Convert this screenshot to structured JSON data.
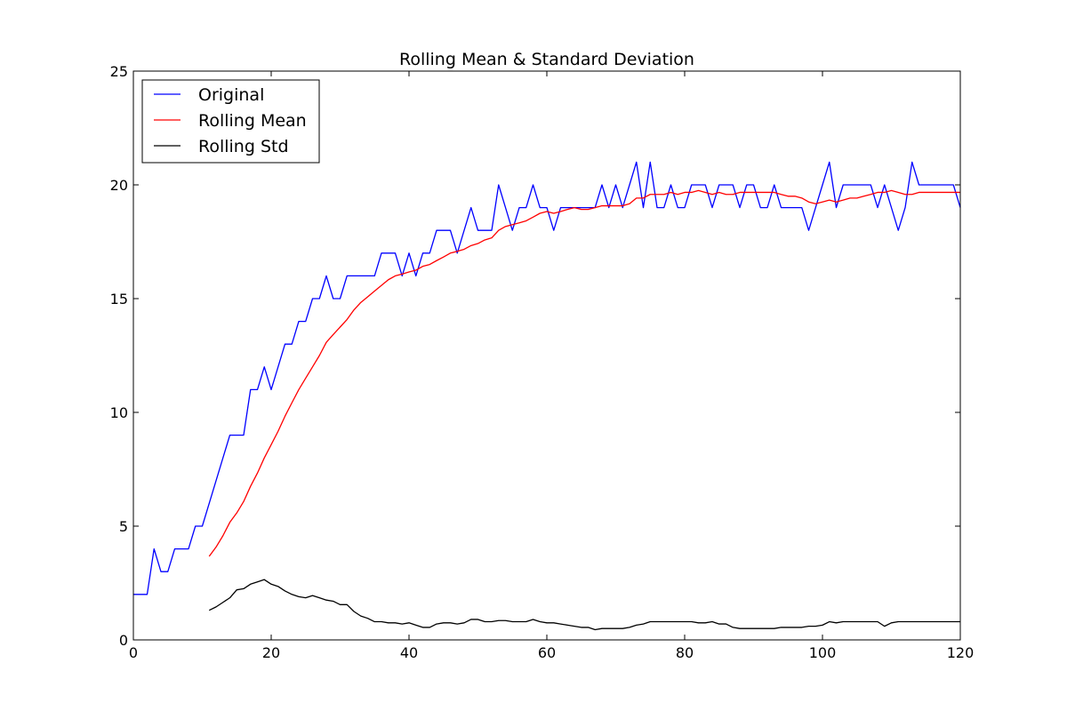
{
  "chart_data": {
    "type": "line",
    "title": "Rolling Mean & Standard Deviation",
    "xlabel": "",
    "ylabel": "",
    "xlim": [
      0,
      120
    ],
    "ylim": [
      0,
      25
    ],
    "x_ticks": [
      "0",
      "20",
      "40",
      "60",
      "80",
      "100",
      "120"
    ],
    "y_ticks": [
      "0",
      "5",
      "10",
      "15",
      "20",
      "25"
    ],
    "grid": false,
    "legend_position": "top-left",
    "series": [
      {
        "name": "Original",
        "color": "#0000ff",
        "x_start": 0,
        "values": [
          2,
          2,
          2,
          4,
          3,
          3,
          4,
          4,
          4,
          5,
          5,
          6,
          7,
          8,
          9,
          9,
          9,
          11,
          11,
          12,
          11,
          12,
          13,
          13,
          14,
          14,
          15,
          15,
          16,
          15,
          15,
          16,
          16,
          16,
          16,
          16,
          17,
          17,
          17,
          16,
          17,
          16,
          17,
          17,
          18,
          18,
          18,
          17,
          18,
          19,
          18,
          18,
          18,
          20,
          19,
          18,
          19,
          19,
          20,
          19,
          19,
          18,
          19,
          19,
          19,
          19,
          19,
          19,
          20,
          19,
          20,
          19,
          20,
          21,
          19,
          21,
          19,
          19,
          20,
          19,
          19,
          20,
          20,
          20,
          19,
          20,
          20,
          20,
          19,
          20,
          20,
          19,
          19,
          20,
          19,
          19,
          19,
          19,
          18,
          19,
          20,
          21,
          19,
          20,
          20,
          20,
          20,
          20,
          19,
          20,
          19,
          18,
          19,
          21,
          20,
          20,
          20,
          20,
          20,
          20,
          19
        ]
      },
      {
        "name": "Rolling Mean",
        "color": "#ff0000",
        "x_start": 11,
        "values": [
          3.67,
          4.08,
          4.58,
          5.17,
          5.58,
          6.08,
          6.75,
          7.33,
          8.0,
          8.58,
          9.17,
          9.83,
          10.42,
          11.0,
          11.5,
          12.0,
          12.5,
          13.08,
          13.42,
          13.75,
          14.08,
          14.5,
          14.83,
          15.08,
          15.33,
          15.58,
          15.83,
          16.0,
          16.08,
          16.17,
          16.25,
          16.42,
          16.5,
          16.67,
          16.83,
          17.0,
          17.08,
          17.17,
          17.33,
          17.42,
          17.58,
          17.67,
          18.0,
          18.17,
          18.25,
          18.33,
          18.42,
          18.58,
          18.75,
          18.83,
          18.75,
          18.83,
          18.92,
          19.0,
          18.92,
          18.92,
          19.0,
          19.08,
          19.08,
          19.08,
          19.08,
          19.17,
          19.42,
          19.42,
          19.58,
          19.58,
          19.58,
          19.67,
          19.58,
          19.67,
          19.67,
          19.75,
          19.67,
          19.58,
          19.67,
          19.58,
          19.58,
          19.67,
          19.67,
          19.67,
          19.67,
          19.67,
          19.67,
          19.58,
          19.5,
          19.5,
          19.42,
          19.25,
          19.17,
          19.25,
          19.33,
          19.25,
          19.33,
          19.42,
          19.42,
          19.5,
          19.58,
          19.67,
          19.67,
          19.75,
          19.67,
          19.58,
          19.58,
          19.67,
          19.67,
          19.67,
          19.67,
          19.67,
          19.67,
          19.67
        ]
      },
      {
        "name": "Rolling Std",
        "color": "#000000",
        "x_start": 11,
        "values": [
          1.3,
          1.45,
          1.65,
          1.85,
          2.2,
          2.25,
          2.45,
          2.55,
          2.65,
          2.45,
          2.35,
          2.15,
          2.0,
          1.9,
          1.85,
          1.95,
          1.85,
          1.75,
          1.7,
          1.55,
          1.55,
          1.25,
          1.05,
          0.95,
          0.8,
          0.8,
          0.75,
          0.75,
          0.7,
          0.75,
          0.65,
          0.55,
          0.55,
          0.7,
          0.75,
          0.75,
          0.7,
          0.75,
          0.9,
          0.9,
          0.8,
          0.8,
          0.85,
          0.85,
          0.8,
          0.8,
          0.8,
          0.9,
          0.8,
          0.75,
          0.75,
          0.7,
          0.65,
          0.6,
          0.55,
          0.55,
          0.45,
          0.5,
          0.5,
          0.5,
          0.5,
          0.55,
          0.65,
          0.7,
          0.8,
          0.8,
          0.8,
          0.8,
          0.8,
          0.8,
          0.8,
          0.75,
          0.75,
          0.8,
          0.7,
          0.7,
          0.55,
          0.5,
          0.5,
          0.5,
          0.5,
          0.5,
          0.5,
          0.55,
          0.55,
          0.55,
          0.55,
          0.6,
          0.6,
          0.65,
          0.8,
          0.75,
          0.8,
          0.8,
          0.8,
          0.8,
          0.8,
          0.8,
          0.6,
          0.75,
          0.8,
          0.8,
          0.8,
          0.8,
          0.8,
          0.8,
          0.8,
          0.8,
          0.8,
          0.8
        ]
      }
    ]
  }
}
